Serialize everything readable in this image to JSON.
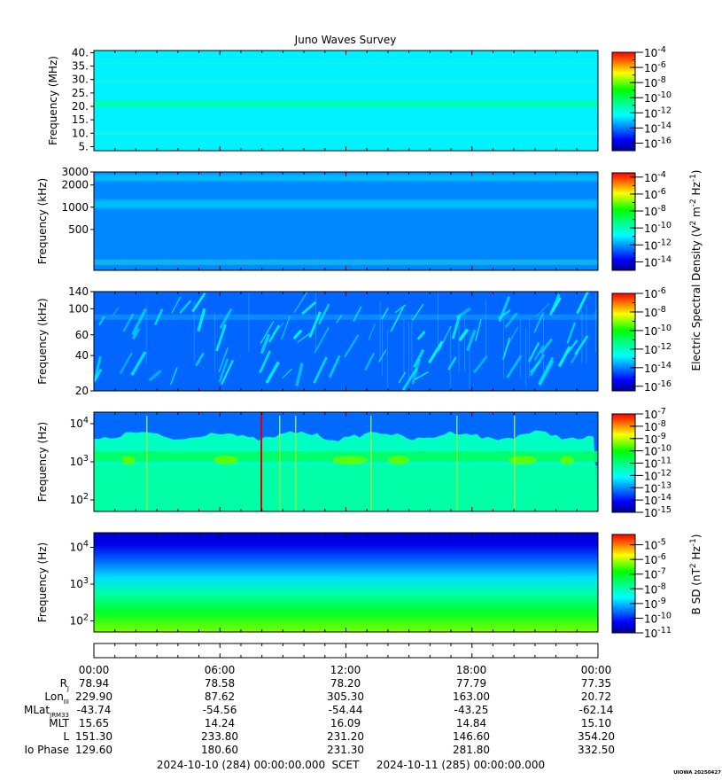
{
  "title": "Juno Waves Survey",
  "chart_data": [
    {
      "type": "heatmap",
      "ylabel": "Frequency (MHz)",
      "yscale": "linear",
      "ylim": [
        3.5,
        40.8
      ],
      "yticks": [
        5,
        10,
        15,
        20,
        25,
        30,
        35,
        40
      ],
      "ytick_labels": [
        "5.",
        "10.",
        "15.",
        "20.",
        "25.",
        "30.",
        "35.",
        "40."
      ],
      "colorbar": {
        "exponents": [
          -16,
          -14,
          -12,
          -10,
          -8,
          -6,
          -4
        ],
        "range": [
          -17,
          -4
        ]
      },
      "colorbar_label": "",
      "description_values": {
        "background_level_exp": -12.5,
        "band_center": 21,
        "band_level_exp": -11.2
      }
    },
    {
      "type": "heatmap",
      "ylabel": "Frequency (kHz)",
      "yscale": "log",
      "ylim": [
        140,
        3000
      ],
      "yticks": [
        500,
        1000,
        2000,
        3000
      ],
      "ytick_labels": [
        "500",
        "1000",
        "2000",
        "3000"
      ],
      "colorbar": {
        "exponents": [
          -14,
          -12,
          -10,
          -8,
          -6,
          -4
        ],
        "range": [
          -15,
          -3.5
        ]
      },
      "colorbar_label": "Electric Spectral Density (V<sup>2</sup> m<sup>-2</sup> Hz<sup>-1</sup>)",
      "description_values": {
        "background_level_exp": -12.2,
        "band_centers": [
          2500,
          1100
        ],
        "band_level_exp": -11.4
      }
    },
    {
      "type": "heatmap",
      "ylabel": "Frequency (kHz)",
      "yscale": "log",
      "ylim": [
        20,
        140
      ],
      "yticks": [
        20,
        40,
        60,
        100,
        140
      ],
      "ytick_labels": [
        "20",
        "40",
        "60",
        "100",
        "140"
      ],
      "colorbar": {
        "exponents": [
          -16,
          -14,
          -12,
          -10,
          -8,
          -6
        ],
        "range": [
          -16.5,
          -6
        ]
      },
      "colorbar_label": "",
      "description_values": {
        "background_level_exp": -14.3,
        "burst_level_exp": -12.6
      }
    },
    {
      "type": "heatmap",
      "ylabel": "Frequency (Hz)",
      "yscale": "log",
      "ylim": [
        50,
        20000
      ],
      "yticks": [
        100,
        1000,
        10000
      ],
      "ytick_labels": [
        "10^2",
        "10^3",
        "10^4"
      ],
      "colorbar": {
        "exponents": [
          -15,
          -14,
          -13,
          -12,
          -11,
          -10,
          -9,
          -8,
          -7
        ],
        "range": [
          -15,
          -7
        ]
      },
      "colorbar_label": "",
      "description_values": {
        "upper_level_exp": -13.3,
        "band_level_exp": -10.8,
        "lower_level_exp": -11.3,
        "hot_spot_level_exp": -9.5
      }
    },
    {
      "type": "heatmap",
      "ylabel": "Frequency (Hz)",
      "yscale": "log",
      "ylim": [
        50,
        25000
      ],
      "yticks": [
        100,
        1000,
        10000
      ],
      "ytick_labels": [
        "10^2",
        "10^3",
        "10^4"
      ],
      "colorbar": {
        "exponents": [
          -11,
          -10,
          -9,
          -8,
          -7,
          -6,
          -5
        ],
        "range": [
          -11,
          -4.3
        ]
      },
      "colorbar_label": "B SD (nT<sup>2</sup> Hz<sup>-1</sup>)",
      "description_values": {
        "top_level_exp": -10.6,
        "bottom_level_exp": -6.3
      }
    }
  ],
  "time_axis": {
    "tick_labels": [
      "00:00",
      "06:00",
      "12:00",
      "18:00",
      "00:00"
    ],
    "rows": [
      {
        "label": "R",
        "sub": "J",
        "values": [
          "78.94",
          "78.58",
          "78.20",
          "77.79",
          "77.35"
        ]
      },
      {
        "label": "Lon",
        "sub": "III",
        "values": [
          "229.90",
          "87.62",
          "305.30",
          "163.00",
          "20.72"
        ]
      },
      {
        "label": "MLat",
        "sub": "JRM33",
        "values": [
          "-43.74",
          "-54.56",
          "-54.44",
          "-43.25",
          "-62.14"
        ]
      },
      {
        "label": "MLT",
        "sub": "",
        "values": [
          "15.65",
          "14.24",
          "16.09",
          "14.84",
          "15.10"
        ]
      },
      {
        "label": "L",
        "sub": "",
        "values": [
          "151.30",
          "233.80",
          "231.20",
          "146.60",
          "354.20"
        ]
      },
      {
        "label": "Io Phase",
        "sub": "",
        "values": [
          "129.60",
          "180.60",
          "231.30",
          "281.80",
          "332.50"
        ]
      }
    ],
    "range_start": "2024-10-10 (284) 00:00:00.000",
    "scet": "SCET",
    "range_end": "2024-10-11 (285) 00:00:00.000"
  },
  "footer": "UIOWA 20250427"
}
